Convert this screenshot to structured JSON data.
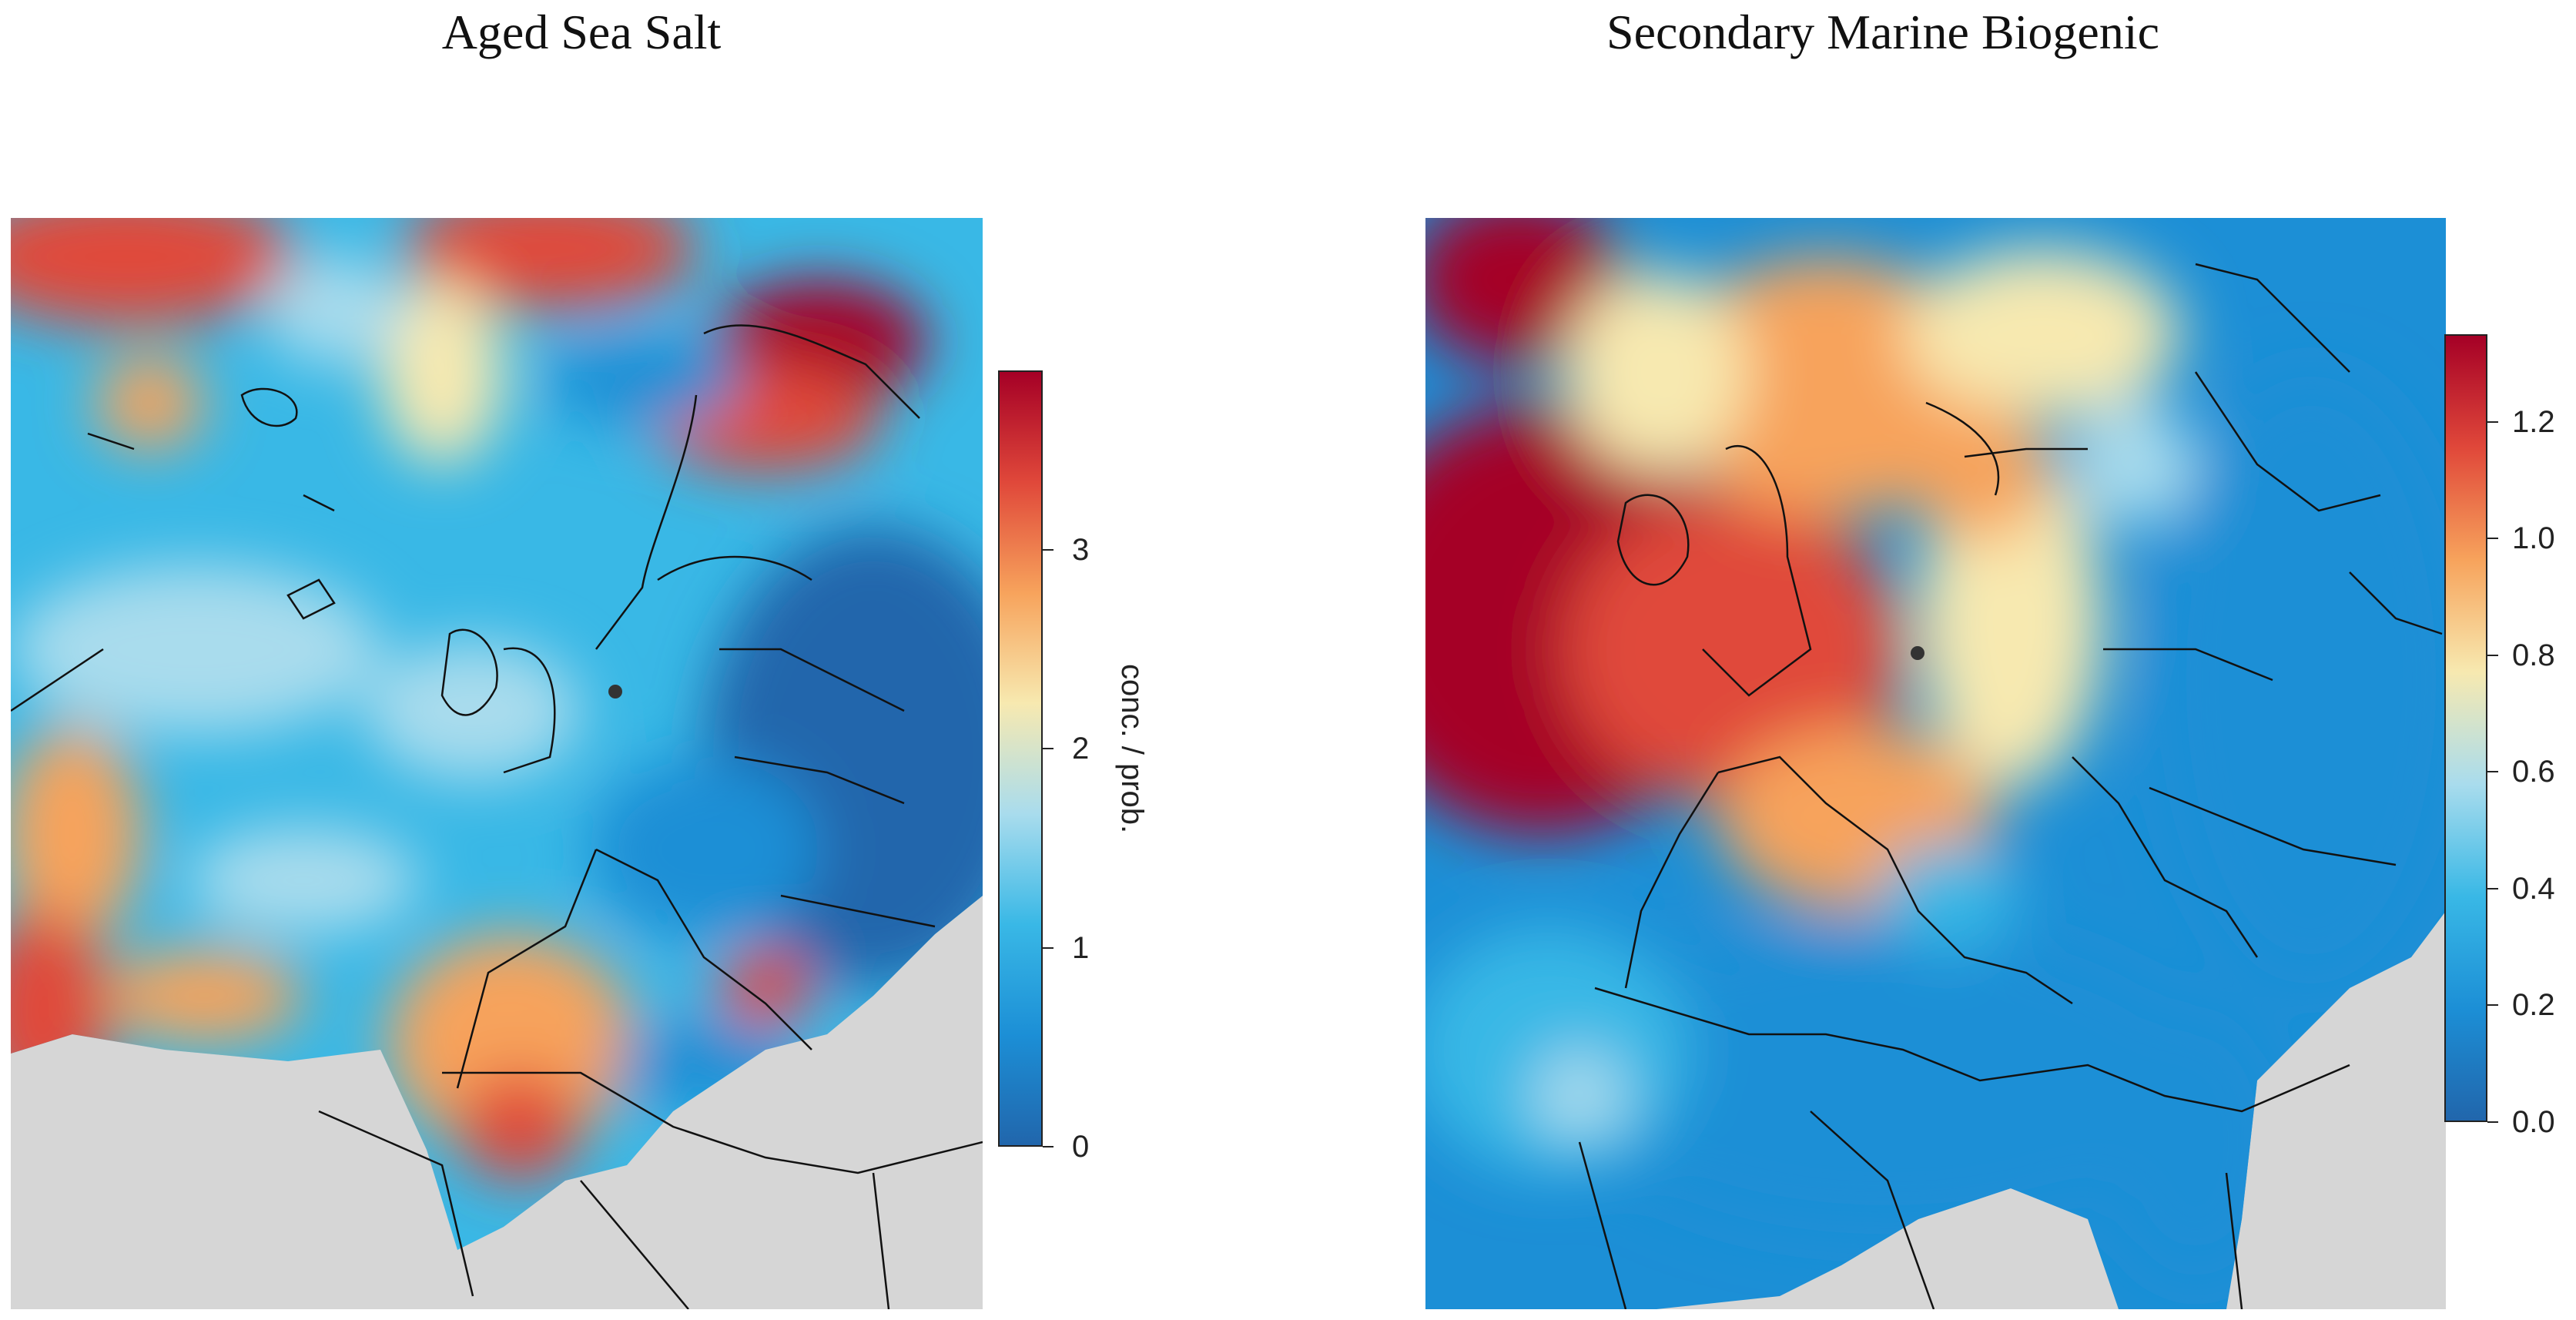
{
  "left_panel": {
    "title": "Aged Sea Salt",
    "colorbar": {
      "min": 0,
      "max": 3.9,
      "ticks": [
        "0",
        "1",
        "2",
        "3"
      ],
      "tick_values": [
        0,
        1,
        2,
        3
      ],
      "label": "conc. / prob."
    }
  },
  "right_panel": {
    "title": "Secondary Marine Biogenic",
    "colorbar": {
      "min": 0,
      "max": 1.35,
      "ticks": [
        "0.0",
        "0.2",
        "0.4",
        "0.6",
        "0.8",
        "1.0",
        "1.2"
      ],
      "tick_values": [
        0,
        0.2,
        0.4,
        0.6,
        0.8,
        1.0,
        1.2
      ]
    }
  },
  "palette": [
    "#2166ac",
    "#1c8fd6",
    "#39b8e6",
    "#a9dced",
    "#f7e9b0",
    "#f7a35c",
    "#e0483a",
    "#a50026"
  ],
  "land_no_data_color": "#d6d6d6",
  "receptor_marker_color": "#333333"
}
